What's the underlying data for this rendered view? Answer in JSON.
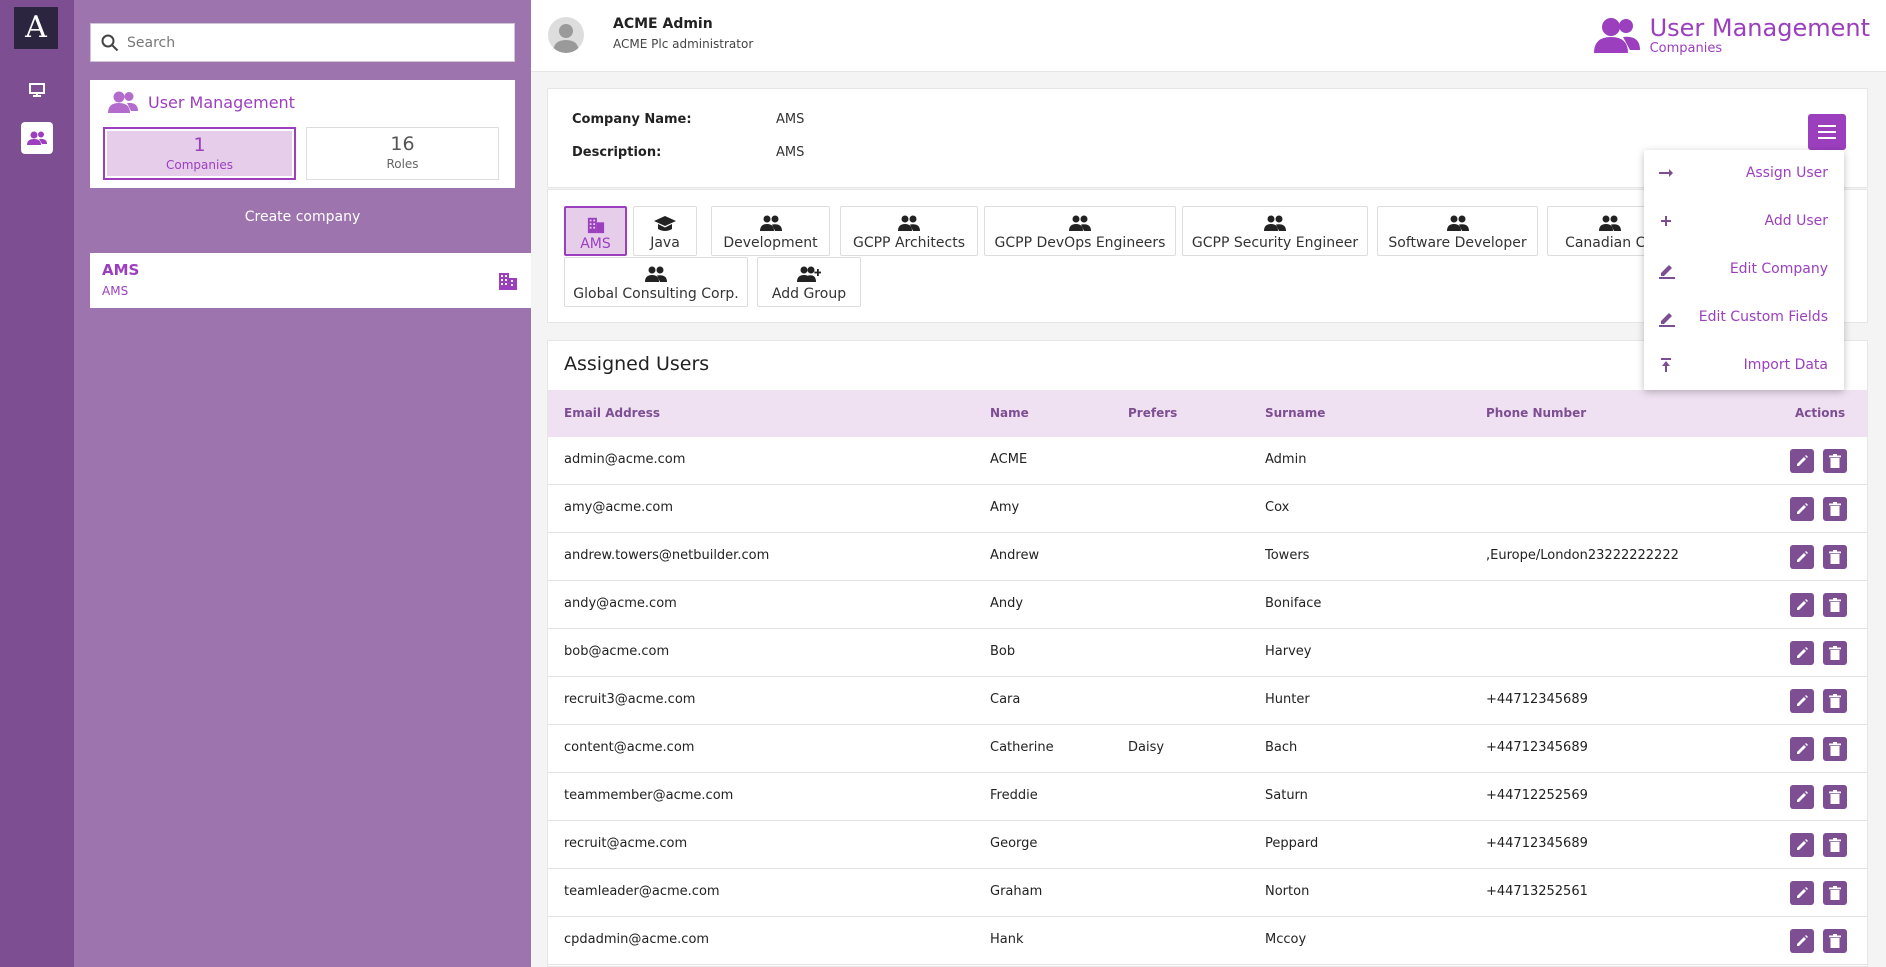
{
  "rail": {
    "logo": "A"
  },
  "search": {
    "placeholder": "Search"
  },
  "panel": {
    "title": "User Management",
    "companies_count": "1",
    "companies_label": "Companies",
    "roles_count": "16",
    "roles_label": "Roles",
    "create_label": "Create company",
    "company": {
      "name": "AMS",
      "description": "AMS"
    }
  },
  "header": {
    "user_name": "ACME Admin",
    "user_role": "ACME Plc administrator",
    "app_title": "User Management",
    "app_subtitle": "Companies"
  },
  "info": {
    "name_label": "Company Name:",
    "name_value": "AMS",
    "desc_label": "Description:",
    "desc_value": "AMS"
  },
  "groups": [
    {
      "label": "AMS",
      "icon": "building-icon"
    },
    {
      "label": "Java",
      "icon": "graduation-cap-icon"
    },
    {
      "label": "Development",
      "icon": "people-icon"
    },
    {
      "label": "GCPP Architects",
      "icon": "people-icon"
    },
    {
      "label": "GCPP DevOps Engineers",
      "icon": "people-icon"
    },
    {
      "label": "GCPP Security Engineer",
      "icon": "people-icon"
    },
    {
      "label": "Software Developer",
      "icon": "people-icon"
    },
    {
      "label": "Canadian Co",
      "icon": "people-icon"
    },
    {
      "label": "Global Consulting Corp.",
      "icon": "people-icon"
    },
    {
      "label": "Add Group",
      "icon": "add-group-icon"
    }
  ],
  "users": {
    "title": "Assigned Users",
    "columns": [
      "Email Address",
      "Name",
      "Prefers",
      "Surname",
      "Phone Number",
      "Actions"
    ],
    "rows": [
      [
        "admin@acme.com",
        "ACME",
        "",
        "Admin",
        ""
      ],
      [
        "amy@acme.com",
        "Amy",
        "",
        "Cox",
        ""
      ],
      [
        "andrew.towers@netbuilder.com",
        "Andrew",
        "",
        "Towers",
        ",Europe/London23222222222"
      ],
      [
        "andy@acme.com",
        "Andy",
        "",
        "Boniface",
        ""
      ],
      [
        "bob@acme.com",
        "Bob",
        "",
        "Harvey",
        ""
      ],
      [
        "recruit3@acme.com",
        "Cara",
        "",
        "Hunter",
        "+44712345689"
      ],
      [
        "content@acme.com",
        "Catherine",
        "Daisy",
        "Bach",
        "+44712345689"
      ],
      [
        "teammember@acme.com",
        "Freddie",
        "",
        "Saturn",
        "+44712252569"
      ],
      [
        "recruit@acme.com",
        "George",
        "",
        "Peppard",
        "+44712345689"
      ],
      [
        "teamleader@acme.com",
        "Graham",
        "",
        "Norton",
        "+44713252561"
      ],
      [
        "cpdadmin@acme.com",
        "Hank",
        "",
        "Mccoy",
        ""
      ]
    ]
  },
  "menu": [
    {
      "label": "Assign User",
      "icon": "arrow-right-icon"
    },
    {
      "label": "Add User",
      "icon": "plus-icon"
    },
    {
      "label": "Edit Company",
      "icon": "pencil-icon"
    },
    {
      "label": "Edit Custom Fields",
      "icon": "pencil-icon"
    },
    {
      "label": "Import Data",
      "icon": "upload-icon"
    }
  ],
  "colors": {
    "accent": "#9b3fbf",
    "rail": "#7d4e92",
    "panel": "#9e74af",
    "header_row": "#efe1f1"
  }
}
